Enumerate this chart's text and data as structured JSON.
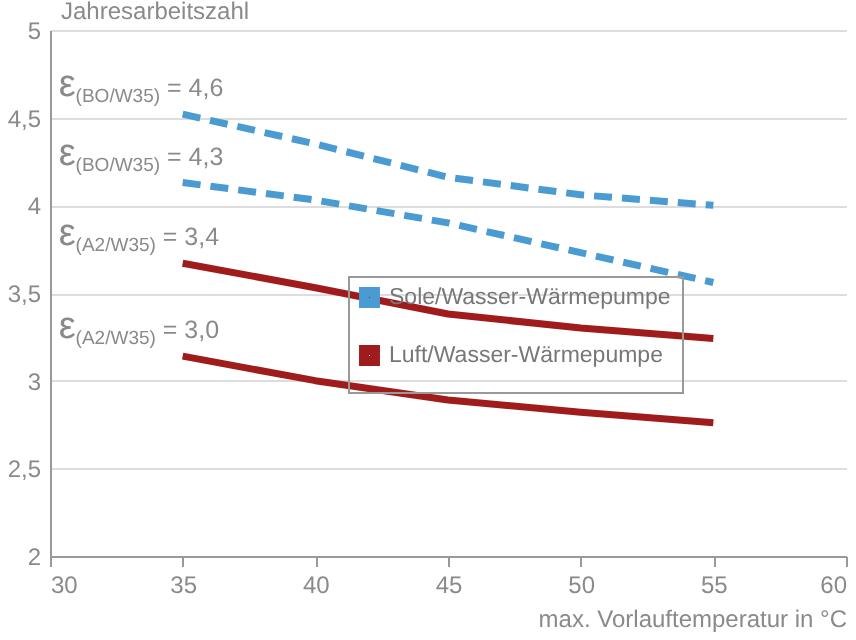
{
  "chart_data": {
    "type": "line",
    "xlabel": "max. Vorlauftemperatur in °C",
    "ylabel": "Jahresarbeitszahl",
    "x": [
      35,
      40,
      45,
      50,
      55
    ],
    "series": [
      {
        "name": "Sole/Wasser-Wärmepumpe",
        "color": "#4a9bd1",
        "line_style": "dashed",
        "values": [
          4.52,
          4.35,
          4.16,
          4.06,
          4.0
        ]
      },
      {
        "color": "#4a9bd1",
        "line_style": "dashed",
        "values": [
          4.13,
          4.03,
          3.9,
          3.73,
          3.56
        ]
      },
      {
        "name": "Luft/Wasser-Wärmepumpe",
        "color": "#a01c1c",
        "line_style": "solid",
        "values": [
          3.67,
          3.53,
          3.38,
          3.3,
          3.24
        ]
      },
      {
        "color": "#a01c1c",
        "line_style": "solid",
        "values": [
          3.14,
          3.0,
          2.89,
          2.82,
          2.76
        ]
      }
    ],
    "annotations": [
      "ε$_{(BO/W35)}$ = 4,6",
      "ε$_{(BO/W35)}$ = 4,3",
      "ε$_{(A2/W35)}$ = 3,4",
      "ε$_{(A2/W35)}$ = 3,0"
    ],
    "xlim": [
      30,
      60
    ],
    "xticks": [
      30,
      35,
      40,
      45,
      50,
      55,
      60
    ],
    "ylim": [
      2,
      5
    ],
    "yticks": [
      {
        "value": 2,
        "label": "2"
      },
      {
        "value": 2.5,
        "label": "2,5"
      },
      {
        "value": 3,
        "label": "3"
      },
      {
        "value": 3.5,
        "label": "3,5"
      },
      {
        "value": 4,
        "label": "4"
      },
      {
        "value": 4.5,
        "label": "4,5"
      },
      {
        "value": 5,
        "label": "5"
      }
    ],
    "grid": "y",
    "legend": "bottom right",
    "marker": "none"
  }
}
